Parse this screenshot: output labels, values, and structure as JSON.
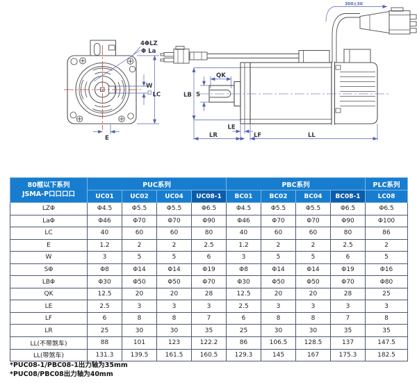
{
  "drawing": {
    "front_labels": {
      "holes": "4ΦLZ",
      "pilot": "Φ La",
      "key_width": "W",
      "frame": "LC",
      "key_offset": "E"
    },
    "side_labels": {
      "qk": "QK",
      "lb": "LB",
      "s": "S",
      "le": "LE",
      "lr": "LR",
      "lf": "LF",
      "ll": "LL",
      "cable_length": "300±30"
    }
  },
  "table": {
    "corner_header": [
      "80框以下系列",
      "JSMA-P口口口口"
    ],
    "groups": [
      {
        "label": "PUC系列",
        "span": 4
      },
      {
        "label": "PBC系列",
        "span": 4
      },
      {
        "label": "PLC系列",
        "span": 1
      }
    ],
    "models": [
      "UC01",
      "UC02",
      "UC04",
      "UC08-1",
      "BC01",
      "BC02",
      "BC04",
      "BC08-1",
      "LC08"
    ],
    "dark_models": [
      "UC08-1",
      "BC08-1"
    ],
    "rows": [
      {
        "param": "LZΦ",
        "values": [
          "Φ4.5",
          "Φ5.5",
          "Φ5.5",
          "Φ6.5",
          "Φ4.5",
          "Φ5.5",
          "Φ5.5",
          "Φ6.5",
          "Φ6.5"
        ]
      },
      {
        "param": "LaΦ",
        "values": [
          "Φ46",
          "Φ70",
          "Φ70",
          "Φ90",
          "Φ46",
          "Φ70",
          "Φ70",
          "Φ90",
          "Φ100"
        ]
      },
      {
        "param": "LC",
        "values": [
          "40",
          "60",
          "60",
          "80",
          "40",
          "60",
          "60",
          "80",
          "86"
        ]
      },
      {
        "param": "E",
        "values": [
          "1.2",
          "2",
          "2",
          "2.5",
          "1.2",
          "2",
          "2",
          "2.5",
          "2"
        ]
      },
      {
        "param": "W",
        "values": [
          "3",
          "5",
          "5",
          "6",
          "3",
          "5",
          "5",
          "6",
          "5"
        ]
      },
      {
        "param": "SΦ",
        "values": [
          "Φ8",
          "Φ14",
          "Φ14",
          "Φ19",
          "Φ8",
          "Φ14",
          "Φ14",
          "Φ19",
          "Φ16"
        ]
      },
      {
        "param": "LBΦ",
        "values": [
          "Φ30",
          "Φ50",
          "Φ50",
          "Φ70",
          "Φ30",
          "Φ50",
          "Φ50",
          "Φ70",
          "Φ80"
        ]
      },
      {
        "param": "QK",
        "values": [
          "12.5",
          "20",
          "20",
          "28",
          "12.5",
          "20",
          "20",
          "28",
          "25"
        ]
      },
      {
        "param": "LE",
        "values": [
          "2.5",
          "3",
          "3",
          "3",
          "2.5",
          "3",
          "3",
          "3",
          "3"
        ]
      },
      {
        "param": "LF",
        "values": [
          "6",
          "8",
          "8",
          "7",
          "6",
          "8",
          "8",
          "7",
          "8"
        ]
      },
      {
        "param": "LR",
        "values": [
          "25",
          "30",
          "30",
          "35",
          "25",
          "30",
          "30",
          "35",
          "35"
        ]
      },
      {
        "param": "LL(不带煞车)",
        "values": [
          "88",
          "101",
          "123",
          "122.2",
          "86",
          "106.5",
          "128.5",
          "137",
          "147.5"
        ]
      },
      {
        "param": "LL(带煞车)",
        "values": [
          "131.3",
          "139.5",
          "161.5",
          "160.5",
          "129.3",
          "145",
          "167",
          "175.3",
          "182.5"
        ]
      }
    ]
  },
  "footnotes": [
    "*PUC08-1/PBC08-1出力轴为35mm",
    "*PUC08/PBC08出力轴为40mm"
  ],
  "colors": {
    "header_blue": "#187dce",
    "header_dark_blue": "#0d5cab",
    "dimension_blue": "#5061ae",
    "centerline_red": "#c54040",
    "outline_gray": "#4f4f4f"
  }
}
